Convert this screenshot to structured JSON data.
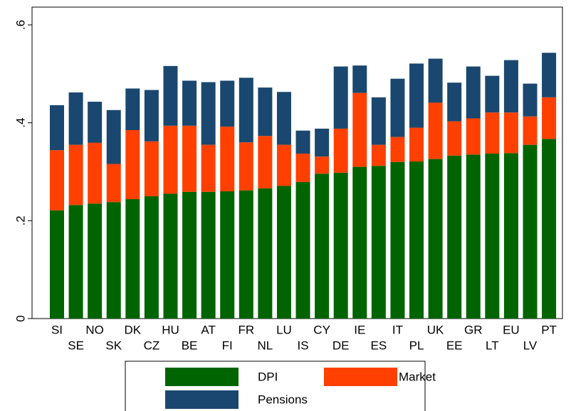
{
  "chart_data": {
    "type": "stacked_bar",
    "categories": [
      "SI",
      "SE",
      "NO",
      "SK",
      "DK",
      "CZ",
      "HU",
      "BE",
      "AT",
      "FI",
      "FR",
      "NL",
      "LU",
      "IS",
      "CY",
      "DE",
      "IE",
      "ES",
      "IT",
      "PL",
      "UK",
      "EE",
      "GR",
      "LT",
      "EU",
      "LV",
      "PT"
    ],
    "series": [
      {
        "name": "DPI",
        "color": "#006400",
        "values": [
          0.221,
          0.232,
          0.235,
          0.238,
          0.244,
          0.25,
          0.255,
          0.259,
          0.259,
          0.26,
          0.262,
          0.266,
          0.271,
          0.279,
          0.296,
          0.298,
          0.31,
          0.312,
          0.32,
          0.321,
          0.326,
          0.333,
          0.335,
          0.337,
          0.338,
          0.355,
          0.367
        ]
      },
      {
        "name": "Market",
        "color": "#ff4000",
        "values": [
          0.123,
          0.123,
          0.124,
          0.078,
          0.141,
          0.112,
          0.139,
          0.135,
          0.096,
          0.132,
          0.098,
          0.107,
          0.084,
          0.058,
          0.035,
          0.09,
          0.151,
          0.043,
          0.051,
          0.069,
          0.115,
          0.07,
          0.074,
          0.084,
          0.083,
          0.058,
          0.085
        ]
      },
      {
        "name": "Pensions",
        "color": "#1a476f",
        "values": [
          0.092,
          0.107,
          0.084,
          0.11,
          0.085,
          0.105,
          0.122,
          0.092,
          0.128,
          0.094,
          0.132,
          0.099,
          0.108,
          0.047,
          0.057,
          0.127,
          0.056,
          0.097,
          0.119,
          0.131,
          0.09,
          0.079,
          0.106,
          0.075,
          0.107,
          0.067,
          0.091
        ]
      }
    ],
    "ylim": [
      0,
      0.6
    ],
    "yticks": [
      0,
      {
        "value": 0.2,
        "label": ".2"
      },
      {
        "value": 0.4,
        "label": ".4"
      },
      {
        "value": 0.6,
        "label": ".6"
      }
    ],
    "grid": false,
    "legend": "bottom"
  }
}
